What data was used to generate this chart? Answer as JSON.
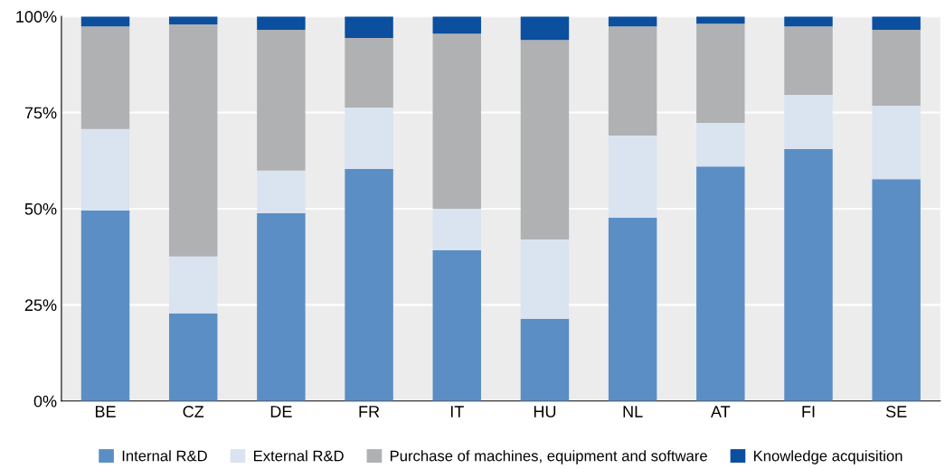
{
  "chart_data": {
    "type": "bar",
    "stacked": true,
    "categories": [
      "BE",
      "CZ",
      "DE",
      "FR",
      "IT",
      "HU",
      "NL",
      "AT",
      "FI",
      "SE"
    ],
    "series": [
      {
        "name": "Internal R&D",
        "color": "#5b8ec4",
        "values": [
          49.5,
          22.8,
          48.8,
          60.3,
          39.2,
          21.4,
          47.7,
          61.0,
          65.5,
          57.7
        ]
      },
      {
        "name": "External R&D",
        "color": "#dae3f0",
        "values": [
          21.2,
          14.8,
          11.1,
          16.0,
          10.8,
          20.6,
          21.3,
          11.3,
          14.1,
          19.1
        ]
      },
      {
        "name": "Purchase of machines, equipment and software",
        "color": "#b0b1b3",
        "values": [
          26.7,
          60.3,
          36.6,
          18.1,
          45.5,
          51.9,
          28.4,
          25.8,
          17.8,
          19.7
        ]
      },
      {
        "name": "Knowledge acquisition",
        "color": "#0b4f9e",
        "values": [
          2.6,
          2.1,
          3.5,
          5.6,
          4.5,
          6.1,
          2.6,
          1.9,
          2.6,
          3.5
        ]
      }
    ],
    "ylim": [
      0,
      100
    ],
    "yticks": [
      {
        "value": 0,
        "label": "0%"
      },
      {
        "value": 25,
        "label": "25%"
      },
      {
        "value": 50,
        "label": "50%"
      },
      {
        "value": 75,
        "label": "75%"
      },
      {
        "value": 100,
        "label": "100%"
      }
    ],
    "grid": "y",
    "legend": "bottom"
  }
}
